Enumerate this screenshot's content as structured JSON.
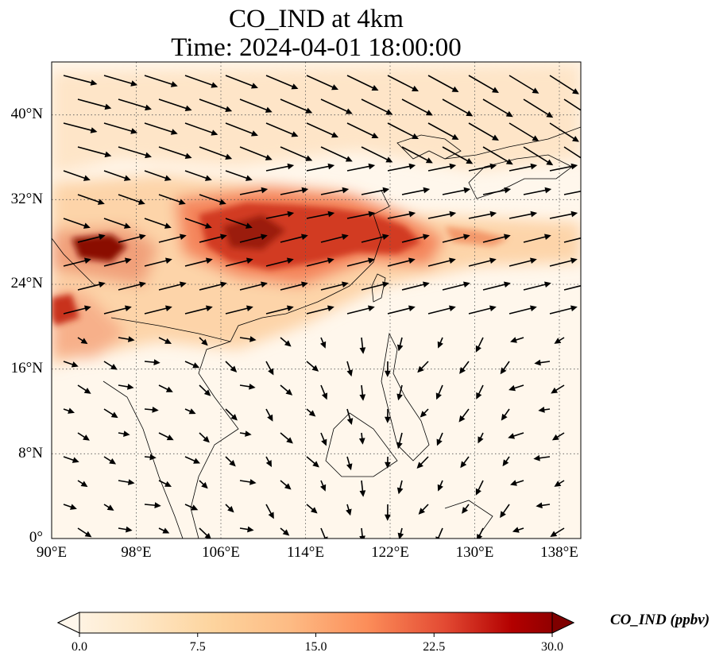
{
  "title": {
    "line1": "CO_IND at 4km",
    "line2": "Time: 2024-04-01 18:00:00"
  },
  "map": {
    "variable": "CO_IND",
    "level": "4km",
    "lon_range": [
      90,
      140
    ],
    "lat_range": [
      0,
      45
    ],
    "y_ticks": [
      "0°",
      "8°N",
      "16°N",
      "24°N",
      "32°N",
      "40°N"
    ],
    "x_ticks": [
      "90°E",
      "98°E",
      "106°E",
      "114°E",
      "122°E",
      "130°E",
      "138°E"
    ],
    "colormap": "OrRd",
    "colors": {
      "low": "#fff7ec",
      "mid": "#fdb07a",
      "high": "#d7301f",
      "max": "#7f0000",
      "wind_arrows": "#000000"
    }
  },
  "colorbar": {
    "label": "CO_IND (ppbv)",
    "ticks": [
      "0.0",
      "7.5",
      "15.0",
      "22.5",
      "30.0"
    ],
    "min": 0,
    "max": 30
  }
}
